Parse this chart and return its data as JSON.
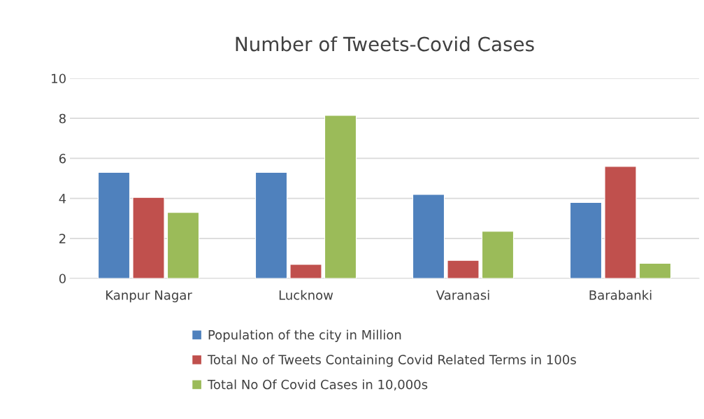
{
  "chart_data": {
    "type": "bar",
    "title": "Number of Tweets-Covid Cases",
    "categories": [
      "Kanpur Nagar",
      "Lucknow",
      "Varanasi",
      "Barabanki"
    ],
    "series": [
      {
        "name": "Population of the city in Million",
        "color": "#4f81bd",
        "values": [
          5.3,
          5.3,
          4.2,
          3.8
        ]
      },
      {
        "name": "Total No of Tweets Containing Covid Related Terms in 100s",
        "color": "#c0504d",
        "values": [
          4.05,
          0.7,
          0.9,
          5.6
        ]
      },
      {
        "name": "Total No Of Covid Cases in 10,000s",
        "color": "#9bbb59",
        "values": [
          3.3,
          8.15,
          2.35,
          0.75
        ]
      }
    ],
    "ylim": [
      0,
      10
    ],
    "yticks": [
      0,
      2,
      4,
      6,
      8,
      10
    ],
    "grid": "y",
    "legend": "bottom"
  }
}
